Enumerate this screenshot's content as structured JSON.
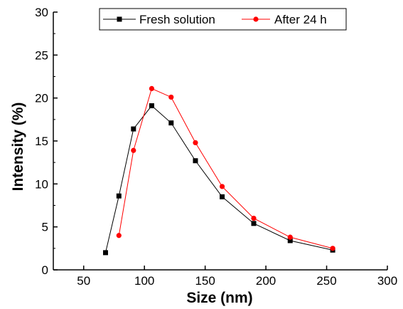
{
  "chart_data": {
    "type": "line",
    "title": "",
    "xlabel": "Size (nm)",
    "ylabel": "Intensity (%)",
    "xlim": [
      25,
      300
    ],
    "ylim": [
      0,
      30
    ],
    "xticks": [
      50,
      100,
      150,
      200,
      250,
      300
    ],
    "yticks": [
      0,
      5,
      10,
      15,
      20,
      25,
      30
    ],
    "grid": false,
    "legend_position": "top",
    "series": [
      {
        "name": "Fresh solution",
        "color": "#000000",
        "marker": "square",
        "x": [
          68,
          79,
          91,
          106,
          122,
          142,
          164,
          190,
          220,
          255
        ],
        "y": [
          2.0,
          8.6,
          16.4,
          19.1,
          17.1,
          12.7,
          8.5,
          5.4,
          3.4,
          2.3
        ]
      },
      {
        "name": "After 24 h",
        "color": "#ff0000",
        "marker": "circle",
        "x": [
          79,
          91,
          106,
          122,
          142,
          164,
          190,
          220,
          255
        ],
        "y": [
          4.0,
          13.9,
          21.1,
          20.1,
          14.8,
          9.7,
          6.0,
          3.8,
          2.5
        ]
      }
    ]
  }
}
